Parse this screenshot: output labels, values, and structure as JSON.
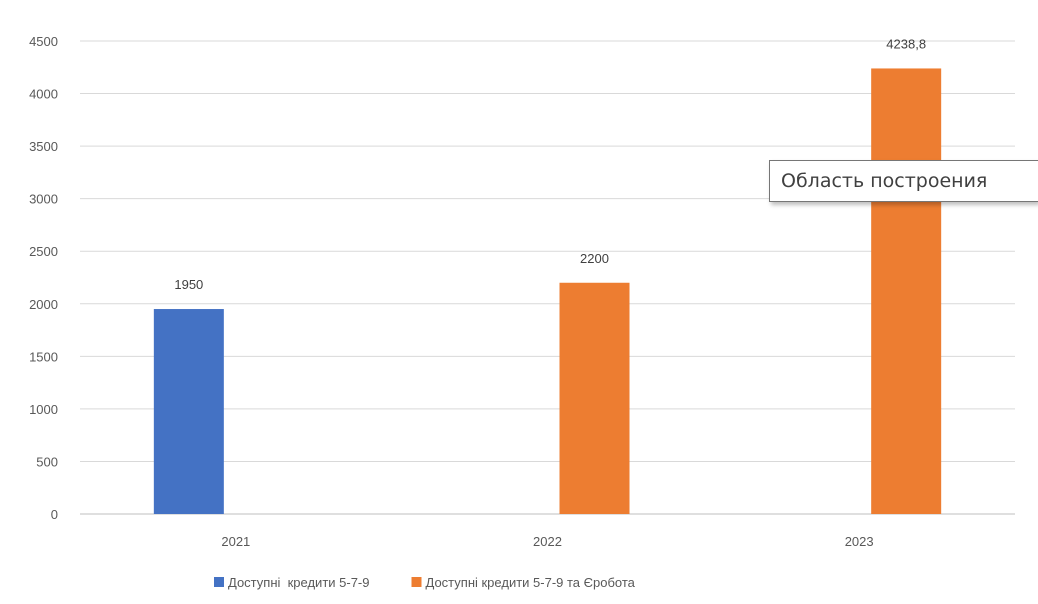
{
  "chart_data": {
    "type": "bar",
    "categories": [
      "2021",
      "2022",
      "2023"
    ],
    "series": [
      {
        "name": "Доступні  кредити 5-7-9",
        "color": "#4472c4",
        "values": [
          1950,
          null,
          null
        ],
        "labels": [
          "1950",
          "",
          ""
        ]
      },
      {
        "name": "Доступні кредити 5-7-9 та Єробота",
        "color": "#ed7d31",
        "values": [
          null,
          2200,
          4238.8
        ],
        "labels": [
          "",
          "2200",
          "4238,8"
        ]
      }
    ],
    "yticks": [
      "0",
      "500",
      "1000",
      "1500",
      "2000",
      "2500",
      "3000",
      "3500",
      "4000",
      "4500"
    ],
    "ylim": [
      0,
      4500
    ],
    "grid": true,
    "legend_position": "bottom",
    "title": "",
    "xlabel": "",
    "ylabel": ""
  },
  "tooltip": {
    "text": "Область построения"
  }
}
